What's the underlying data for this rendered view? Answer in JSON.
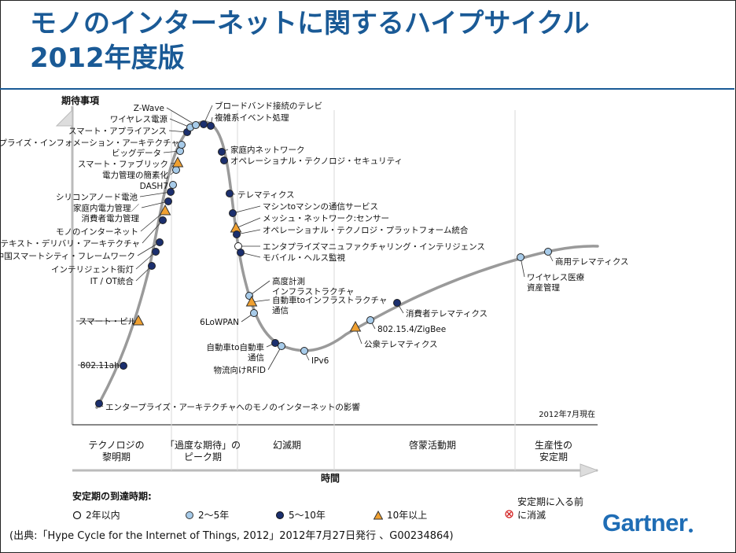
{
  "title": {
    "line1": "モノのインターネットに関するハイプサイクル",
    "line2": "2012年度版"
  },
  "colors": {
    "title": "#1a5a96",
    "curve": "#9a9a9a",
    "dot_lt2": "#ffffff",
    "dot_2to5": "#a7cbe9",
    "dot_5to10": "#1b2f6e",
    "triangle_10plus": "#f0a030",
    "gartner": "#1f6db5"
  },
  "chart_data": {
    "type": "hype_cycle",
    "y_axis_label": "期待事項",
    "x_axis_label": "時間",
    "as_of": "2012年7月現在",
    "phases": [
      {
        "label": "テクノロジの\n黎明期"
      },
      {
        "label": "「過度な期待」の\nピーク期"
      },
      {
        "label": "幻滅期"
      },
      {
        "label": "啓蒙活動期"
      },
      {
        "label": "生産性の\n安定期"
      }
    ],
    "technologies": [
      {
        "name": "エンタープライズ・アーキテクチャへのモノのインターネットの影響",
        "phase": "黎明期",
        "maturity": "5~10年"
      },
      {
        "name": "802.11ah",
        "phase": "黎明期",
        "maturity": "5~10年"
      },
      {
        "name": "スマート・ピル",
        "phase": "黎明期",
        "maturity": "10年以上"
      },
      {
        "name": "IT / OT統合",
        "phase": "黎明期",
        "maturity": "5~10年"
      },
      {
        "name": "インテリジェント街灯",
        "phase": "黎明期",
        "maturity": "5~10年"
      },
      {
        "name": "中国スマートシティ・フレームワーク",
        "phase": "黎明期",
        "maturity": "5~10年"
      },
      {
        "name": "コンテキスト・デリバリ・アーキテクチャ",
        "phase": "黎明期",
        "maturity": "5~10年"
      },
      {
        "name": "モノのインターネット",
        "phase": "黎明期",
        "maturity": "10年以上"
      },
      {
        "name": "家庭内電力管理／\n消費者電力管理",
        "phase": "黎明期",
        "maturity": "5~10年"
      },
      {
        "name": "シリコンアノード電池",
        "phase": "ピーク期",
        "maturity": "5~10年"
      },
      {
        "name": "DASH7",
        "phase": "ピーク期",
        "maturity": "2~5年"
      },
      {
        "name": "電力管理の簡素化",
        "phase": "ピーク期",
        "maturity": "2~5年"
      },
      {
        "name": "スマート・ファブリック",
        "phase": "ピーク期",
        "maturity": "10年以上"
      },
      {
        "name": "ビッグデータ",
        "phase": "ピーク期",
        "maturity": "2~5年"
      },
      {
        "name": "エンタプライズ・インフォメーション・アーキテクチャ",
        "phase": "ピーク期",
        "maturity": "2~5年"
      },
      {
        "name": "スマート・アプライアンス",
        "phase": "ピーク期",
        "maturity": "5~10年"
      },
      {
        "name": "ワイヤレス電源",
        "phase": "ピーク期",
        "maturity": "2~5年"
      },
      {
        "name": "Z-Wave",
        "phase": "ピーク期",
        "maturity": "2~5年"
      },
      {
        "name": "ブロードバンド接続のテレビ",
        "phase": "ピーク期",
        "maturity": "5~10年"
      },
      {
        "name": "複雑系イベント処理",
        "phase": "ピーク期",
        "maturity": "5~10年"
      },
      {
        "name": "家庭内ネットワーク",
        "phase": "幻滅期",
        "maturity": "5~10年"
      },
      {
        "name": "オペレーショナル・テクノロジ・セキュリティ",
        "phase": "幻滅期",
        "maturity": "5~10年"
      },
      {
        "name": "テレマティクス",
        "phase": "幻滅期",
        "maturity": "5~10年"
      },
      {
        "name": "マシンtoマシンの通信サービス",
        "phase": "幻滅期",
        "maturity": "5~10年"
      },
      {
        "name": "メッシュ・ネットワーク:センサー",
        "phase": "幻滅期",
        "maturity": "10年以上"
      },
      {
        "name": "オペレーショナル・テクノロジ・プラットフォーム統合",
        "phase": "幻滅期",
        "maturity": "5~10年"
      },
      {
        "name": "エンタプライズマニュファクチャリング・インテリジェンス",
        "phase": "幻滅期",
        "maturity": "2年以内"
      },
      {
        "name": "モバイル・ヘルス監視",
        "phase": "幻滅期",
        "maturity": "5~10年"
      },
      {
        "name": "高度計測\nインフラストラクチャ",
        "phase": "幻滅期",
        "maturity": "2~5年"
      },
      {
        "name": "自動車toインフラストラクチャ\n通信",
        "phase": "幻滅期",
        "maturity": "10年以上"
      },
      {
        "name": "6LoWPAN",
        "phase": "幻滅期",
        "maturity": "2~5年"
      },
      {
        "name": "自動車to自動車\n通信",
        "phase": "幻滅期",
        "maturity": "5~10年"
      },
      {
        "name": "物流向けRFID",
        "phase": "幻滅期",
        "maturity": "2~5年"
      },
      {
        "name": "IPv6",
        "phase": "幻滅期",
        "maturity": "2~5年"
      },
      {
        "name": "公衆テレマティクス",
        "phase": "啓蒙活動期",
        "maturity": "10年以上"
      },
      {
        "name": "802.15.4/ZigBee",
        "phase": "啓蒙活動期",
        "maturity": "2~5年"
      },
      {
        "name": "消費者テレマティクス",
        "phase": "啓蒙活動期",
        "maturity": "5~10年"
      },
      {
        "name": "ワイヤレス医療\n資産管理",
        "phase": "啓蒙活動期",
        "maturity": "2~5年"
      },
      {
        "name": "商用テレマティクス",
        "phase": "啓蒙活動期",
        "maturity": "2~5年"
      }
    ]
  },
  "legend": {
    "title": "安定期の到達時期:",
    "items": [
      {
        "symbol": "open",
        "label": "2年以内"
      },
      {
        "symbol": "light",
        "label": "2～5年"
      },
      {
        "symbol": "dark",
        "label": "5～10年"
      },
      {
        "symbol": "triangle",
        "label": "10年以上"
      }
    ],
    "obsolete_line1": "安定期に入る前",
    "obsolete_line2": "に消滅"
  },
  "source": "(出典:「Hype Cycle for the Internet of Things, 2012」2012年7月27日発行 、G00234864)",
  "brand": "Gartner"
}
